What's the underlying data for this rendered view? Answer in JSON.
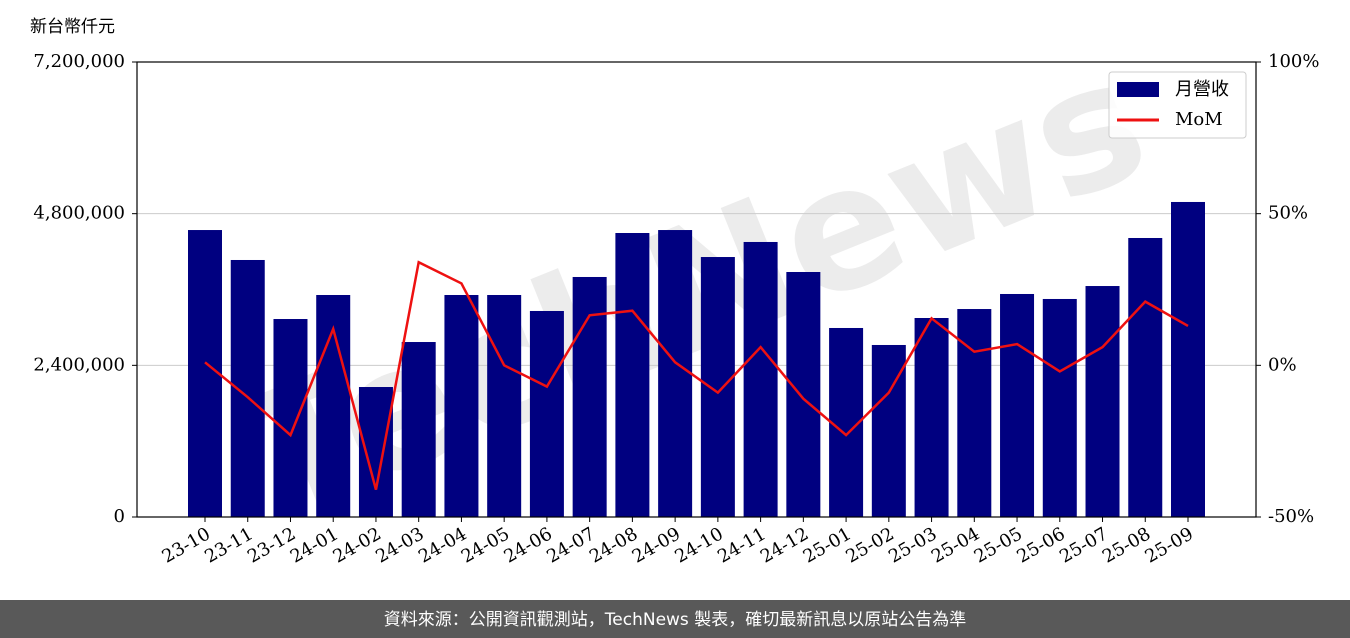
{
  "chart_data": {
    "type": "bar_line",
    "y_axis_label": "新台幣仟元",
    "watermark": "TechNews",
    "categories": [
      "23-10",
      "23-11",
      "23-12",
      "24-01",
      "24-02",
      "24-03",
      "24-04",
      "24-05",
      "24-06",
      "24-07",
      "24-08",
      "24-09",
      "24-10",
      "24-11",
      "24-12",
      "25-01",
      "25-02",
      "25-03",
      "25-04",
      "25-05",
      "25-06",
      "25-07",
      "25-08",
      "25-09"
    ],
    "series": [
      {
        "name": "月營收",
        "color": "#000080",
        "type": "bar",
        "values": [
          4541000,
          4067000,
          3133000,
          3513000,
          2057000,
          2769000,
          3513000,
          3513000,
          3260000,
          3798000,
          4494000,
          4541000,
          4114000,
          4352000,
          3877000,
          2991000,
          2722000,
          3149000,
          3291000,
          3529000,
          3450000,
          3655000,
          4415000,
          4985000
        ]
      },
      {
        "name": "MoM",
        "color": "#ee1111",
        "type": "line",
        "axis": "y2",
        "values": [
          1,
          -10.5,
          -23,
          12,
          -41,
          34,
          27,
          0,
          -7,
          16.5,
          18,
          1,
          -9,
          6,
          -11,
          -23,
          -9,
          15.5,
          4.5,
          7,
          -2,
          6,
          21,
          13
        ]
      }
    ],
    "ylim": [
      0,
      7200000
    ],
    "yticks": [
      0,
      {
        "value": 2400000,
        "label": "2,400,000"
      },
      {
        "value": 4800000,
        "label": "4,800,000"
      },
      {
        "value": 7200000,
        "label": "7,200,000"
      }
    ],
    "y2lim": [
      -50,
      100
    ],
    "y2ticks": [
      {
        "value": -50,
        "label": "-50%"
      },
      {
        "value": 0,
        "label": "0%"
      },
      {
        "value": 50,
        "label": "50%"
      },
      {
        "value": 100,
        "label": "100%"
      }
    ],
    "grid": true,
    "legend": "upper right"
  },
  "footer": "資料來源：公開資訊觀測站，TechNews 製表，確切最新訊息以原站公告為準"
}
